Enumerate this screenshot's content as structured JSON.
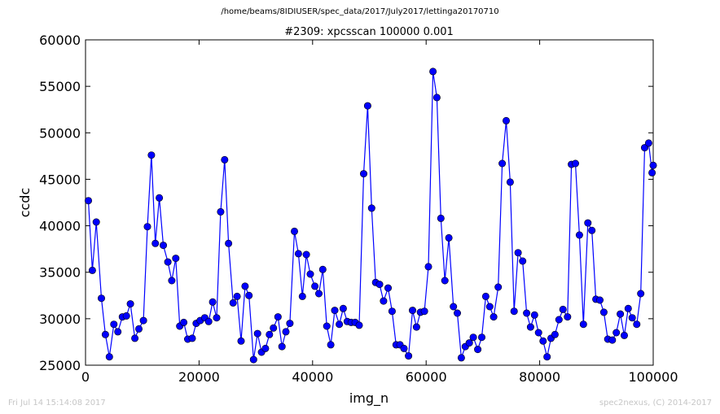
{
  "page": {
    "title": "/home/beams/8IDIUSER/spec_data/2017/July2017/lettinga20170710",
    "timestamp": "Fri Jul 14 15:14:08 2017",
    "credit": "spec2nexus, (C) 2014-2017"
  },
  "chart_data": {
    "type": "line",
    "title": "#2309: xpcsscan 100000 0.001",
    "xlabel": "img_n",
    "ylabel": "ccdc",
    "xlim": [
      0,
      100000
    ],
    "ylim": [
      25000,
      60000
    ],
    "xticks": [
      0,
      20000,
      40000,
      60000,
      80000,
      100000
    ],
    "yticks": [
      25000,
      30000,
      35000,
      40000,
      45000,
      50000,
      55000,
      60000
    ],
    "xtick_labels": [
      "0",
      "20000",
      "40000",
      "60000",
      "80000",
      "100000"
    ],
    "ytick_labels": [
      "25000",
      "30000",
      "35000",
      "40000",
      "45000",
      "50000",
      "55000",
      "60000"
    ],
    "grid": false,
    "marker": "circle",
    "color": "#0000ff",
    "series": [
      {
        "x": [
          500,
          1200,
          1900,
          2800,
          3500,
          4200,
          5000,
          5700,
          6500,
          7200,
          7900,
          8700,
          9400,
          10200,
          10900,
          11600,
          12300,
          13000,
          13700,
          14500,
          15200,
          15900,
          16600,
          17300,
          18000,
          18800,
          19500,
          20200,
          21000,
          21700,
          22400,
          23100,
          23800,
          24500,
          25200,
          26000,
          26700,
          27400,
          28100,
          28800,
          29600,
          30300,
          31000,
          31700,
          32400,
          33100,
          33900,
          34600,
          35300,
          36000,
          36800,
          37500,
          38200,
          38900,
          39600,
          40400,
          41100,
          41800,
          42500,
          43200,
          43900,
          44700,
          45400,
          46100,
          46800,
          47500,
          48200,
          49000,
          49700,
          50400,
          51100,
          51800,
          52500,
          53300,
          54000,
          54700,
          55400,
          56100,
          56900,
          57600,
          58300,
          59000,
          59700,
          60400,
          61200,
          61900,
          62600,
          63300,
          64000,
          64800,
          65500,
          66200,
          66900,
          67600,
          68300,
          69100,
          69800,
          70500,
          71200,
          71900,
          72700,
          73400,
          74100,
          74800,
          75500,
          76200,
          77000,
          77700,
          78400,
          79100,
          79800,
          80600,
          81300,
          82000,
          82700,
          83400,
          84100,
          84900,
          85600,
          86300,
          87000,
          87700,
          88500,
          89200,
          89900,
          90600,
          91300,
          92000,
          92800,
          93500,
          94200,
          94900,
          95600,
          96300,
          97100,
          97800,
          98500,
          99200,
          99800,
          100000
        ],
        "y": [
          42700,
          35200,
          40400,
          32200,
          28300,
          25900,
          29400,
          28600,
          30200,
          30300,
          31600,
          27900,
          28900,
          29800,
          39900,
          47600,
          38100,
          43000,
          37900,
          36100,
          34100,
          36500,
          29200,
          29600,
          27800,
          27900,
          29500,
          29800,
          30100,
          29700,
          31800,
          30100,
          41500,
          47100,
          38100,
          31700,
          32400,
          27600,
          33500,
          32500,
          25600,
          28400,
          26400,
          26800,
          28300,
          29000,
          30200,
          27000,
          28600,
          29500,
          39400,
          37000,
          32400,
          36900,
          34800,
          33500,
          32700,
          35300,
          29200,
          27200,
          30900,
          29400,
          31100,
          29700,
          29600,
          29600,
          29300,
          45600,
          52900,
          41900,
          33900,
          33700,
          31900,
          33300,
          30800,
          27200,
          27200,
          26800,
          26000,
          30900,
          29100,
          30700,
          30800,
          35600,
          56600,
          53800,
          40800,
          34100,
          38700,
          31300,
          30600,
          25800,
          27000,
          27400,
          28000,
          26700,
          28000,
          32400,
          31300,
          30200,
          33400,
          46700,
          51300,
          44700,
          30800,
          37100,
          36200,
          30600,
          29100,
          30400,
          28500,
          27600,
          25900,
          27900,
          28300,
          29900,
          31000,
          30200,
          46600,
          46700,
          39000,
          29400,
          40300,
          39500,
          32100,
          32000,
          30700,
          27800,
          27700,
          28500,
          30500,
          28200,
          31100,
          30100,
          29400,
          32700,
          48400,
          48900,
          45700,
          46500
        ]
      }
    ]
  }
}
